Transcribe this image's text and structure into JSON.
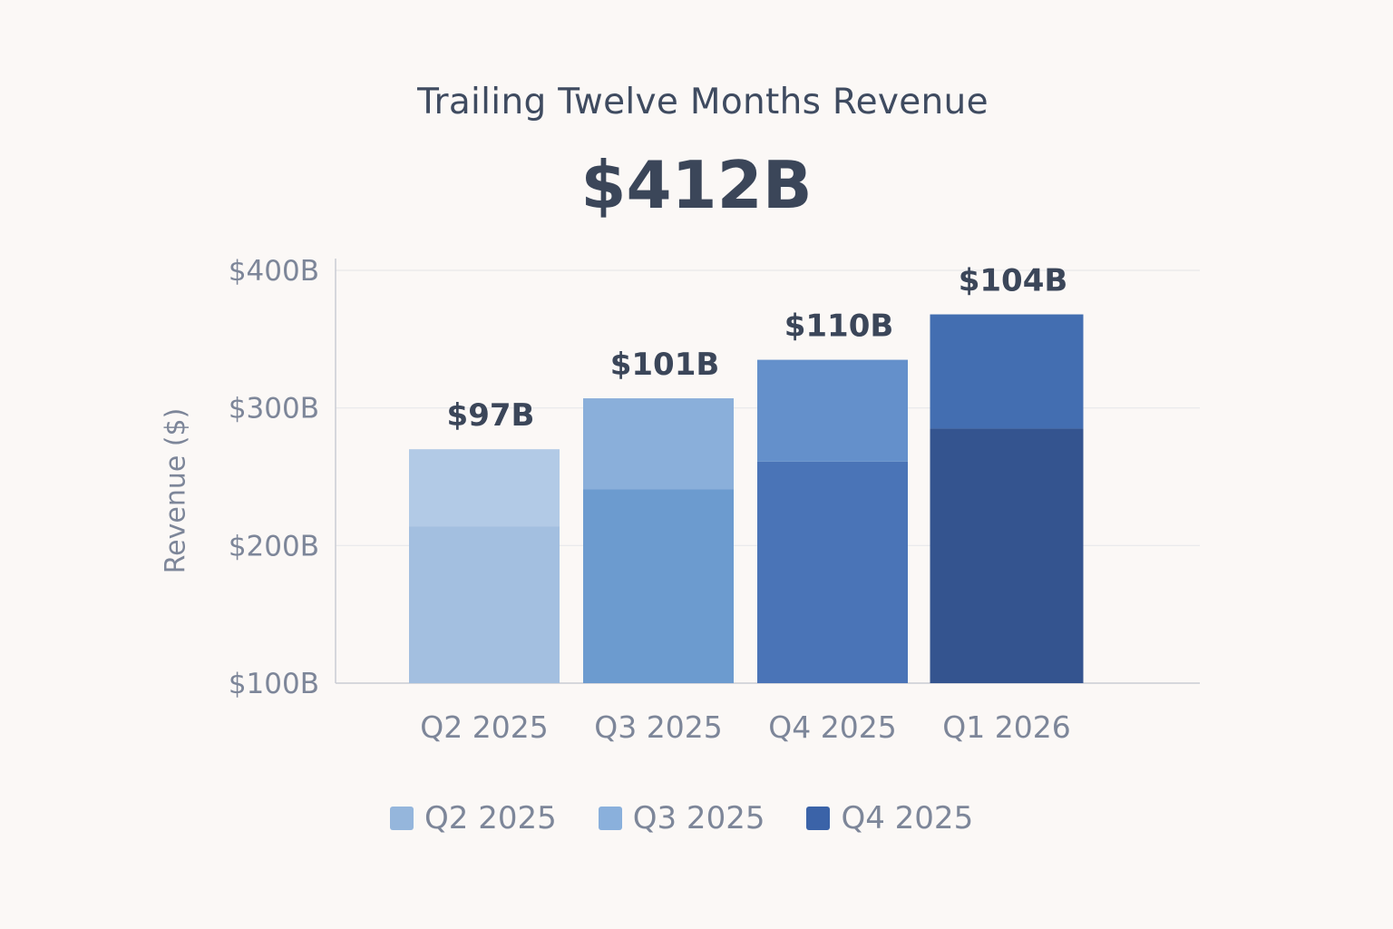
{
  "title": "Trailing Twelve Months Revenue",
  "total": "$412B",
  "colors": {
    "text_dark": "#3b4659",
    "text_muted": "#7d8699",
    "grid": "#e8e8ea",
    "axis": "#c9ccd4",
    "bars": [
      "#a3bfe0",
      "#6c9bcf",
      "#4a74b7",
      "#34548f"
    ],
    "bars_top": [
      "#b2cae6",
      "#8aafda",
      "#6490cb",
      "#436eb1"
    ],
    "legend": [
      "#95b6dc",
      "#8ab0dc",
      "#3b63a8"
    ]
  },
  "chart_data": {
    "type": "bar",
    "title": "Trailing Twelve Months Revenue",
    "ylabel": "Revenue ($)",
    "ylim": [
      100,
      400
    ],
    "yticks": [
      100,
      200,
      300,
      400
    ],
    "ytick_labels": [
      "$100B",
      "$200B",
      "$300B",
      "$400B"
    ],
    "categories": [
      "Q2 2025",
      "Q3 2025",
      "Q4 2025",
      "Q1 2026"
    ],
    "values": [
      270,
      307,
      335,
      368
    ],
    "lower_segment_top": [
      214,
      241,
      261,
      285
    ],
    "data_labels": [
      "$97B",
      "$101B",
      "$110B",
      "$104B"
    ],
    "legend": [
      "Q2 2025",
      "Q3 2025",
      "Q4 2025"
    ],
    "grid": true
  }
}
